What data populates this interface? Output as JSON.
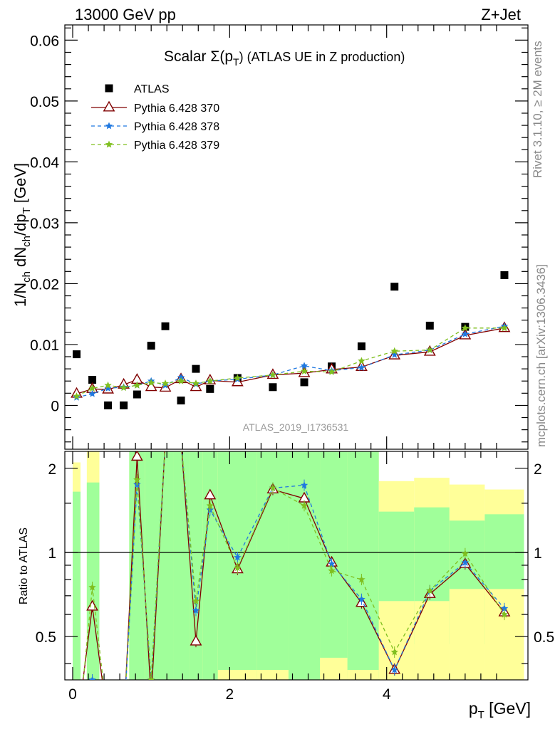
{
  "header": {
    "left": "13000 GeV pp",
    "right": "Z+Jet"
  },
  "side_labels": {
    "rivet": "Rivet 3.1.10, ≥ 2M events",
    "mcplots": "mcplots.cern.ch [arXiv:1306.3436]"
  },
  "colors": {
    "atlas": "#000000",
    "p370": "#800000",
    "p378": "#1f78e0",
    "p379": "#7fbf1f",
    "band_inner": "#a0ff9a",
    "band_outer": "#ffff99"
  },
  "chart_data": {
    "type": "scatter",
    "title": "Scalar Σ(pT) (ATLAS UE in Z production)",
    "title_main": "Scalar Σ(p",
    "title_sub": "T",
    "title_tail": ") (ATLAS UE in Z production)",
    "watermark": "ATLAS_2019_I1736531",
    "xlabel": "pT [GeV]",
    "xlabel_main": "p",
    "xlabel_sub": "T",
    "xlabel_tail": " [GeV]",
    "ylabel": "1/Nch dNch/dpT [GeV]",
    "ratio_ylabel": "Ratio to ATLAS",
    "xlim": [
      -0.1,
      5.8
    ],
    "ylim": [
      -0.0072,
      0.0625
    ],
    "ratio_ylim": [
      0.35,
      2.3
    ],
    "xticks": [
      0,
      2,
      4
    ],
    "yticks": [
      0,
      0.01,
      0.02,
      0.03,
      0.04,
      0.05,
      0.06
    ],
    "ytick_labels": [
      "0",
      "0.01",
      "0.02",
      "0.03",
      "0.04",
      "0.05",
      "0.06"
    ],
    "ratio_yticks": [
      0.5,
      1,
      2
    ],
    "ratio_ytick_labels": [
      "0.5",
      "1",
      "2"
    ],
    "x": [
      0.05,
      0.25,
      0.45,
      0.65,
      0.82,
      1.0,
      1.18,
      1.38,
      1.57,
      1.75,
      2.1,
      2.55,
      2.95,
      3.3,
      3.68,
      4.1,
      4.55,
      5.0,
      5.5
    ],
    "bins": [
      [
        0.0,
        0.1
      ],
      [
        0.18,
        0.34
      ],
      [
        0.34,
        0.56
      ],
      [
        0.56,
        0.72
      ],
      [
        0.72,
        0.92
      ],
      [
        0.92,
        1.08
      ],
      [
        1.08,
        1.28
      ],
      [
        1.28,
        1.48
      ],
      [
        1.48,
        1.66
      ],
      [
        1.66,
        1.85
      ],
      [
        1.85,
        2.35
      ],
      [
        2.35,
        2.75
      ],
      [
        2.75,
        3.15
      ],
      [
        3.15,
        3.5
      ],
      [
        3.5,
        3.9
      ],
      [
        3.9,
        4.35
      ],
      [
        4.35,
        4.8
      ],
      [
        4.8,
        5.25
      ],
      [
        5.25,
        5.75
      ]
    ],
    "band_inner": [
      [
        0.35,
        1.65
      ],
      [
        0.35,
        1.78
      ],
      null,
      null,
      [
        0.35,
        2.3
      ],
      [
        0.35,
        2.3
      ],
      [
        0.35,
        2.3
      ],
      [
        0.35,
        2.3
      ],
      [
        0.35,
        2.3
      ],
      [
        0.35,
        2.3
      ],
      [
        0.35,
        2.3
      ],
      [
        0.35,
        2.3
      ],
      [
        0.35,
        2.3
      ],
      [
        0.35,
        2.3
      ],
      [
        0.35,
        2.3
      ],
      [
        0.35,
        1.4
      ],
      [
        0.47,
        1.45
      ],
      [
        0.47,
        1.3
      ],
      [
        0.47,
        1.37
      ]
    ],
    "band_outer": [
      [
        0.35,
        2.1
      ],
      [
        0.35,
        2.3
      ],
      null,
      null,
      [
        0.35,
        2.3
      ],
      [
        0.35,
        2.3
      ],
      [
        0.35,
        2.3
      ],
      [
        0.35,
        2.3
      ],
      [
        0.35,
        2.3
      ],
      [
        0.35,
        2.3
      ],
      [
        0.35,
        2.3
      ],
      [
        0.35,
        2.3
      ],
      [
        0.35,
        2.3
      ],
      [
        0.35,
        2.3
      ],
      [
        0.35,
        2.3
      ],
      [
        0.35,
        1.8
      ],
      [
        0.35,
        1.85
      ],
      [
        0.35,
        1.75
      ],
      [
        0.35,
        1.68
      ]
    ],
    "band_inner_gaps": [
      null,
      null,
      null,
      null,
      null,
      null,
      null,
      null,
      null,
      null,
      [
        0.35,
        0.38
      ],
      [
        0.35,
        0.38
      ],
      null,
      [
        0.35,
        0.42
      ],
      [
        0.35,
        0.38
      ],
      [
        0.35,
        0.67
      ],
      [
        0.35,
        0.67
      ],
      [
        0.35,
        0.74
      ],
      [
        0.35,
        0.74
      ]
    ],
    "series": [
      {
        "name": "ATLAS",
        "marker": "square",
        "values": [
          0.0084,
          0.0042,
          0.0,
          0.0,
          0.0018,
          0.0098,
          0.013,
          0.0008,
          0.006,
          0.0027,
          0.0045,
          0.003,
          0.0038,
          0.0064,
          0.0097,
          0.0195,
          0.0131,
          0.0129,
          0.0214
        ]
      },
      {
        "name": "Pythia 6.428 370",
        "marker": "triangle",
        "values": [
          0.0019,
          0.0027,
          0.0026,
          0.0034,
          0.0042,
          0.003,
          0.0029,
          0.0043,
          0.003,
          0.0041,
          0.0038,
          0.005,
          0.0053,
          0.0059,
          0.0063,
          0.0082,
          0.0088,
          0.0115,
          0.0127
        ],
        "ratio": [
          0.23,
          0.64,
          -1,
          -1,
          2.2,
          0.3,
          2.5,
          2.5,
          0.48,
          1.6,
          0.87,
          1.68,
          1.56,
          0.92,
          0.66,
          0.38,
          0.71,
          0.91,
          0.61
        ]
      },
      {
        "name": "Pythia 6.428 378",
        "marker": "star",
        "values": [
          0.0013,
          0.0019,
          0.0028,
          0.003,
          0.0033,
          0.004,
          0.0033,
          0.0046,
          0.0035,
          0.004,
          0.0043,
          0.005,
          0.0065,
          0.0057,
          0.0062,
          0.0083,
          0.0091,
          0.0117,
          0.013
        ],
        "ratio": [
          0.2,
          0.35,
          -1,
          -1,
          1.75,
          0.35,
          2.5,
          2.5,
          0.62,
          1.42,
          0.96,
          1.7,
          1.74,
          0.91,
          0.68,
          0.38,
          0.73,
          0.92,
          0.63
        ]
      },
      {
        "name": "Pythia 6.428 379",
        "marker": "star",
        "values": [
          0.0015,
          0.0028,
          0.0033,
          0.0029,
          0.0033,
          0.0037,
          0.0036,
          0.004,
          0.0036,
          0.004,
          0.0045,
          0.005,
          0.0056,
          0.0055,
          0.0073,
          0.0089,
          0.0091,
          0.0127,
          0.0127
        ],
        "ratio": [
          0.2,
          0.75,
          -1,
          -1,
          1.82,
          0.35,
          2.5,
          2.5,
          0.67,
          1.47,
          0.88,
          1.7,
          1.47,
          0.86,
          0.8,
          0.44,
          0.73,
          0.99,
          0.6
        ]
      }
    ]
  }
}
